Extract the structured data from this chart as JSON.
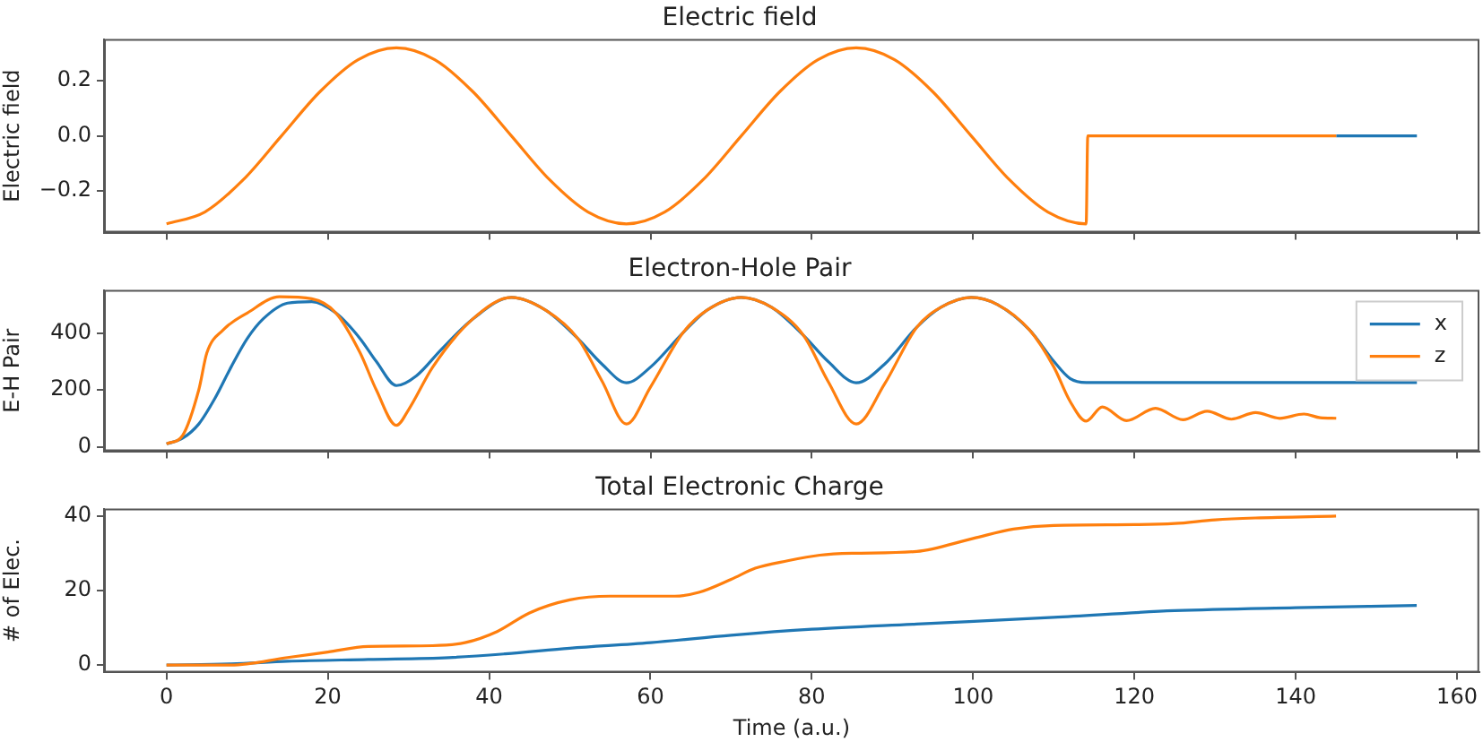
{
  "chart_data": [
    {
      "type": "line",
      "title": "Electric field",
      "ylabel": "Electric field",
      "xlim": [
        -7.75,
        162.75
      ],
      "xticks": [
        0,
        20,
        40,
        60,
        80,
        100,
        120,
        140,
        160
      ],
      "ylim": [
        -0.352,
        0.352
      ],
      "yticks": [
        {
          "value": -0.2,
          "label": "−0.2"
        },
        {
          "value": 0,
          "label": "0.0"
        },
        {
          "value": 0.2,
          "label": "0.2"
        }
      ],
      "tick_labels": "y",
      "series": [
        {
          "color": "#1f77b4",
          "x": [
            145,
            155
          ],
          "values": [
            0,
            0
          ]
        },
        {
          "color": "#ff7f0e",
          "x": [
            0,
            4.75,
            9.5,
            14.25,
            19,
            23.75,
            28.5,
            33.25,
            38,
            42.75,
            47.5,
            52.25,
            57,
            61.75,
            66.5,
            71.25,
            76,
            80.75,
            85.5,
            90.25,
            95,
            99.75,
            104.5,
            109.25,
            114,
            114.2,
            145
          ],
          "values": [
            -0.32,
            -0.277,
            -0.16,
            0,
            0.16,
            0.277,
            0.32,
            0.277,
            0.16,
            0,
            -0.16,
            -0.277,
            -0.32,
            -0.277,
            -0.16,
            0,
            0.16,
            0.277,
            0.32,
            0.277,
            0.16,
            0,
            -0.16,
            -0.277,
            -0.32,
            0,
            0
          ]
        }
      ]
    },
    {
      "type": "line",
      "title": "Electron-Hole Pair",
      "ylabel": "E-H Pair",
      "xlim": [
        -7.75,
        162.75
      ],
      "xticks": [
        0,
        20,
        40,
        60,
        80,
        100,
        120,
        140,
        160
      ],
      "ylim": [
        -16,
        551
      ],
      "yticks": [
        0,
        200,
        400
      ],
      "tick_labels": "y",
      "legend": "top right",
      "series": [
        {
          "name": "x",
          "color": "#1f77b4",
          "x": [
            0,
            2,
            4,
            6,
            8,
            10,
            12,
            15,
            18,
            21,
            24,
            26,
            28.5,
            31,
            34,
            38,
            42.75,
            47,
            51,
            54,
            57,
            60,
            64,
            67,
            71.25,
            75,
            79,
            82,
            85.5,
            89,
            93,
            96,
            99.75,
            103,
            107,
            110,
            112,
            114,
            155
          ],
          "values": [
            10,
            30,
            80,
            170,
            280,
            380,
            450,
            505,
            510,
            470,
            380,
            300,
            215,
            250,
            340,
            450,
            525,
            480,
            380,
            290,
            225,
            280,
            400,
            480,
            525,
            490,
            390,
            300,
            225,
            290,
            420,
            490,
            525,
            500,
            410,
            300,
            240,
            226,
            226
          ]
        },
        {
          "name": "z",
          "color": "#ff7f0e",
          "x": [
            0,
            2,
            4,
            5,
            7,
            10,
            14,
            18,
            21,
            24,
            26,
            28.5,
            30,
            33,
            38,
            42.75,
            47,
            51,
            54,
            57,
            60,
            64,
            67,
            71.25,
            75,
            79,
            82,
            85.5,
            89,
            93,
            96,
            99.75,
            103,
            107,
            110,
            112,
            114,
            116,
            119,
            122.6,
            126,
            129,
            132,
            135,
            138,
            141,
            143,
            145
          ],
          "values": [
            10,
            40,
            200,
            330,
            410,
            470,
            527,
            520,
            470,
            330,
            200,
            75,
            130,
            280,
            450,
            525,
            480,
            380,
            230,
            80,
            210,
            400,
            480,
            525,
            490,
            390,
            230,
            80,
            220,
            420,
            490,
            525,
            500,
            410,
            280,
            160,
            90,
            140,
            92,
            135,
            95,
            125,
            97,
            120,
            100,
            115,
            102,
            100
          ]
        }
      ]
    },
    {
      "type": "line",
      "title": "Total Electronic Charge",
      "xlabel": "Time (a.u.)",
      "ylabel": "# of Elec.",
      "xlim": [
        -7.75,
        162.75
      ],
      "xticks": [
        0,
        20,
        40,
        60,
        80,
        100,
        120,
        140,
        160
      ],
      "ylim": [
        -2,
        42
      ],
      "yticks": [
        0,
        20,
        40
      ],
      "series": [
        {
          "color": "#1f77b4",
          "x": [
            0,
            8,
            15,
            25,
            35,
            42,
            50,
            60,
            70,
            80,
            93,
            110,
            125,
            140,
            155
          ],
          "values": [
            0,
            0.3,
            1,
            1.5,
            2,
            3,
            4.5,
            6,
            8,
            9.6,
            11,
            12.8,
            14.6,
            15.4,
            16
          ]
        },
        {
          "color": "#ff7f0e",
          "x": [
            0,
            8,
            15,
            20,
            25,
            33,
            37,
            41,
            45,
            50,
            55,
            63,
            66,
            70,
            73,
            77,
            81,
            85,
            93,
            100,
            105,
            110,
            120,
            125,
            130,
            135,
            145
          ],
          "values": [
            0,
            0,
            2,
            3.5,
            5,
            5.2,
            6,
            9,
            14,
            17.5,
            18.5,
            18.5,
            19.5,
            23,
            26,
            28,
            29.5,
            30,
            30.5,
            34,
            36.5,
            37.5,
            37.7,
            38,
            39,
            39.5,
            40
          ]
        }
      ]
    }
  ]
}
